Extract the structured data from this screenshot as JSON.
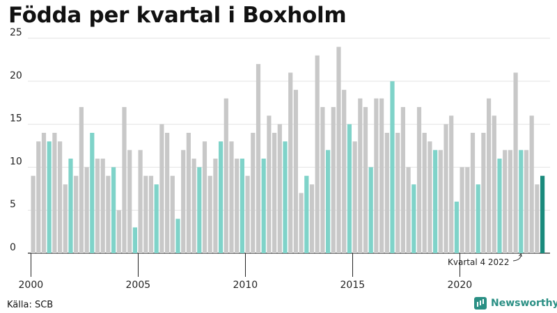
{
  "title": "Födda per kvartal i Boxholm",
  "source": "Källa: SCB",
  "brand": "Newsworthy",
  "colors": {
    "default": "#c8c8c8",
    "q4": "#7fd3c9",
    "highlight": "#1a8a7c"
  },
  "chart_data": {
    "type": "bar",
    "title": "Födda per kvartal i Boxholm",
    "xlabel": "",
    "ylabel": "",
    "ylim": [
      0,
      25
    ],
    "yticks": [
      0,
      5,
      10,
      15,
      20,
      25
    ],
    "xtick_labels": [
      "2000",
      "2005",
      "2010",
      "2015",
      "2020"
    ],
    "grid": true,
    "start_year": 2000,
    "values": [
      9,
      13,
      14,
      13,
      14,
      13,
      8,
      11,
      9,
      17,
      10,
      14,
      11,
      11,
      9,
      10,
      5,
      17,
      12,
      3,
      12,
      9,
      9,
      8,
      15,
      14,
      9,
      4,
      12,
      14,
      11,
      10,
      13,
      9,
      11,
      13,
      18,
      13,
      11,
      11,
      9,
      14,
      22,
      11,
      16,
      14,
      15,
      13,
      21,
      19,
      7,
      9,
      8,
      23,
      17,
      12,
      17,
      24,
      19,
      15,
      13,
      18,
      17,
      10,
      18,
      18,
      14,
      20,
      14,
      17,
      10,
      8,
      17,
      14,
      13,
      12,
      12,
      15,
      16,
      6,
      10,
      10,
      14,
      8,
      14,
      18,
      16,
      11,
      12,
      12,
      21,
      12,
      12,
      16,
      8,
      9
    ],
    "annotation": "Kvartal 4 2022"
  }
}
